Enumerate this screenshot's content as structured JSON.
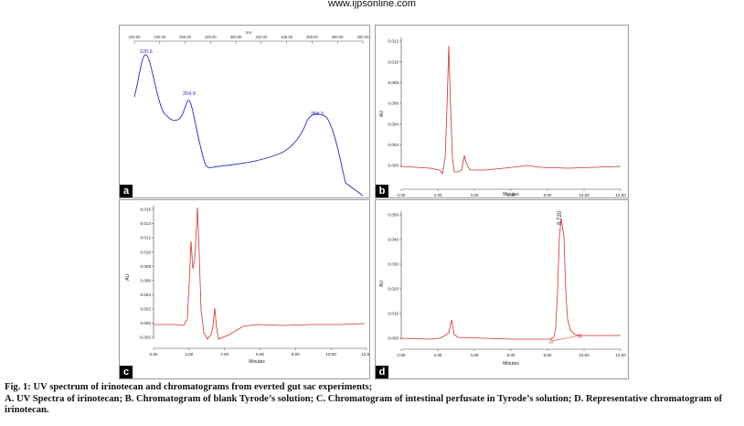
{
  "site_url": "www.ijpsonline.com",
  "panels": {
    "a": {
      "label": "a",
      "x_unit": "nm",
      "x_ticks": [
        "220.00",
        "240.00",
        "260.00",
        "280.00",
        "300.00",
        "320.00",
        "340.00",
        "360.00",
        "380.00",
        "400.00"
      ],
      "peaks": [
        "220.6",
        "254.9",
        "358.3"
      ]
    },
    "b": {
      "label": "b",
      "ylabel": "AU",
      "xlabel": "Minutes",
      "y_ticks": [
        "0.012",
        "0.010",
        "0.008",
        "0.006",
        "0.004",
        "0.002",
        "0.000"
      ],
      "x_ticks": [
        "0.00",
        "2.00",
        "4.00",
        "6.00",
        "8.00",
        "10.00",
        "12.00"
      ]
    },
    "c": {
      "label": "c",
      "ylabel": "AU",
      "xlabel": "Minutes",
      "y_ticks": [
        "0.016",
        "0.014",
        "0.012",
        "0.010",
        "0.008",
        "0.006",
        "0.004",
        "0.002",
        "0.000",
        "-0.002"
      ],
      "x_ticks": [
        "0.00",
        "2.00",
        "4.00",
        "6.00",
        "8.00",
        "10.00",
        "12.00"
      ]
    },
    "d": {
      "label": "d",
      "ylabel": "AU",
      "xlabel": "Minutes",
      "y_ticks": [
        "0.050",
        "0.040",
        "0.030",
        "0.020",
        "0.010",
        "0.000"
      ],
      "x_ticks": [
        "0.00",
        "2.00",
        "4.00",
        "6.00",
        "8.00",
        "10.00",
        "12.00"
      ],
      "peak_label": "8.720"
    }
  },
  "caption": {
    "line1": "Fig. 1: UV spectrum of irinotecan and chromatograms from everted gut sac experiments;",
    "line2": "A. UV Spectra of irinotecan; B. Chromatogram of blank Tyrode’s solution; C. Chromatogram of intestinal perfusate in Tyrode’s solution; D. Representative chromatogram of irinotecan."
  }
}
